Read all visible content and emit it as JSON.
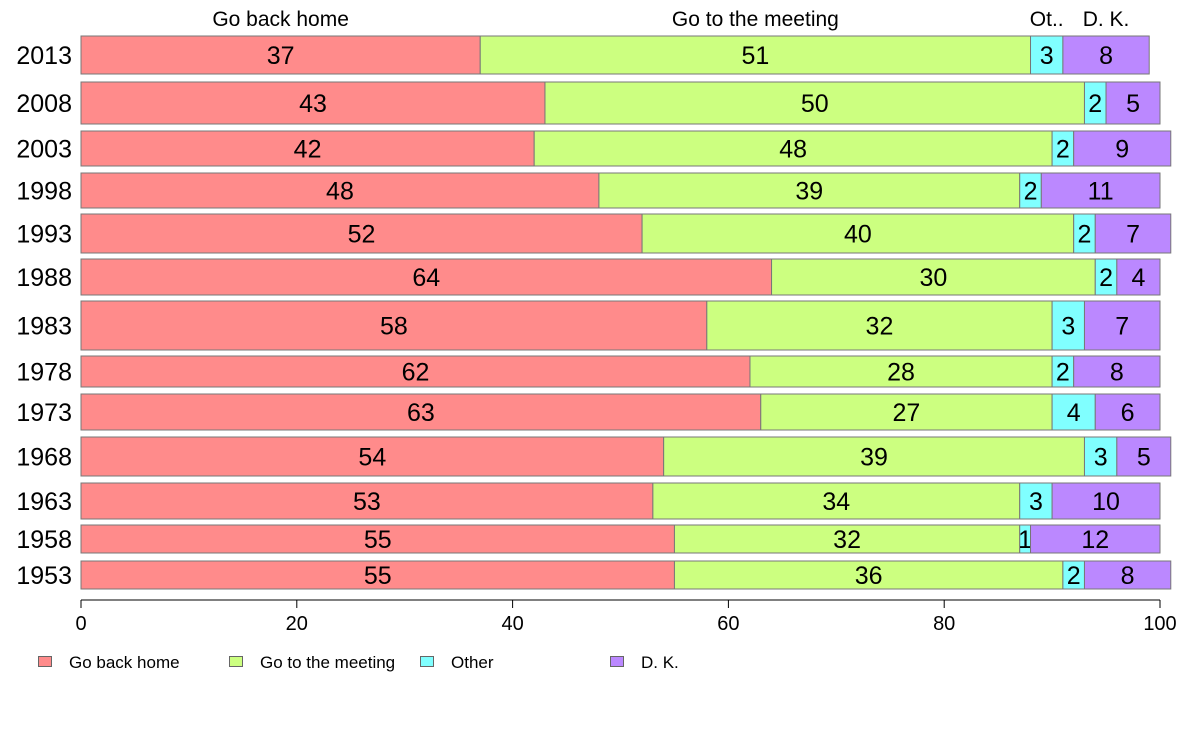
{
  "chart_data": {
    "type": "bar",
    "orientation": "horizontal",
    "stacked": true,
    "categories": [
      "2013",
      "2008",
      "2003",
      "1998",
      "1993",
      "1988",
      "1983",
      "1978",
      "1973",
      "1968",
      "1963",
      "1958",
      "1953"
    ],
    "series": [
      {
        "name": "Go back home",
        "color": "#ff8b8b",
        "values": [
          37,
          43,
          42,
          48,
          52,
          64,
          58,
          62,
          63,
          54,
          53,
          55,
          55
        ]
      },
      {
        "name": "Go to the meeting",
        "color": "#ccff80",
        "values": [
          51,
          50,
          48,
          39,
          40,
          30,
          32,
          28,
          27,
          39,
          34,
          32,
          36
        ]
      },
      {
        "name": "Other",
        "color": "#80ffff",
        "values": [
          3,
          2,
          2,
          2,
          2,
          2,
          3,
          2,
          4,
          3,
          3,
          1,
          2
        ]
      },
      {
        "name": "D. K.",
        "color": "#bb88ff",
        "values": [
          8,
          5,
          9,
          11,
          7,
          4,
          7,
          8,
          6,
          5,
          10,
          12,
          8
        ]
      }
    ],
    "top_labels": [
      "Go back home",
      "Go to the meeting",
      "Ot..",
      "D. K."
    ],
    "xlim": [
      0,
      100
    ],
    "xticks": [
      0,
      20,
      40,
      60,
      80,
      100
    ],
    "title": "",
    "xlabel": "",
    "ylabel": "",
    "grid": false,
    "legend_placement": "bottom"
  }
}
